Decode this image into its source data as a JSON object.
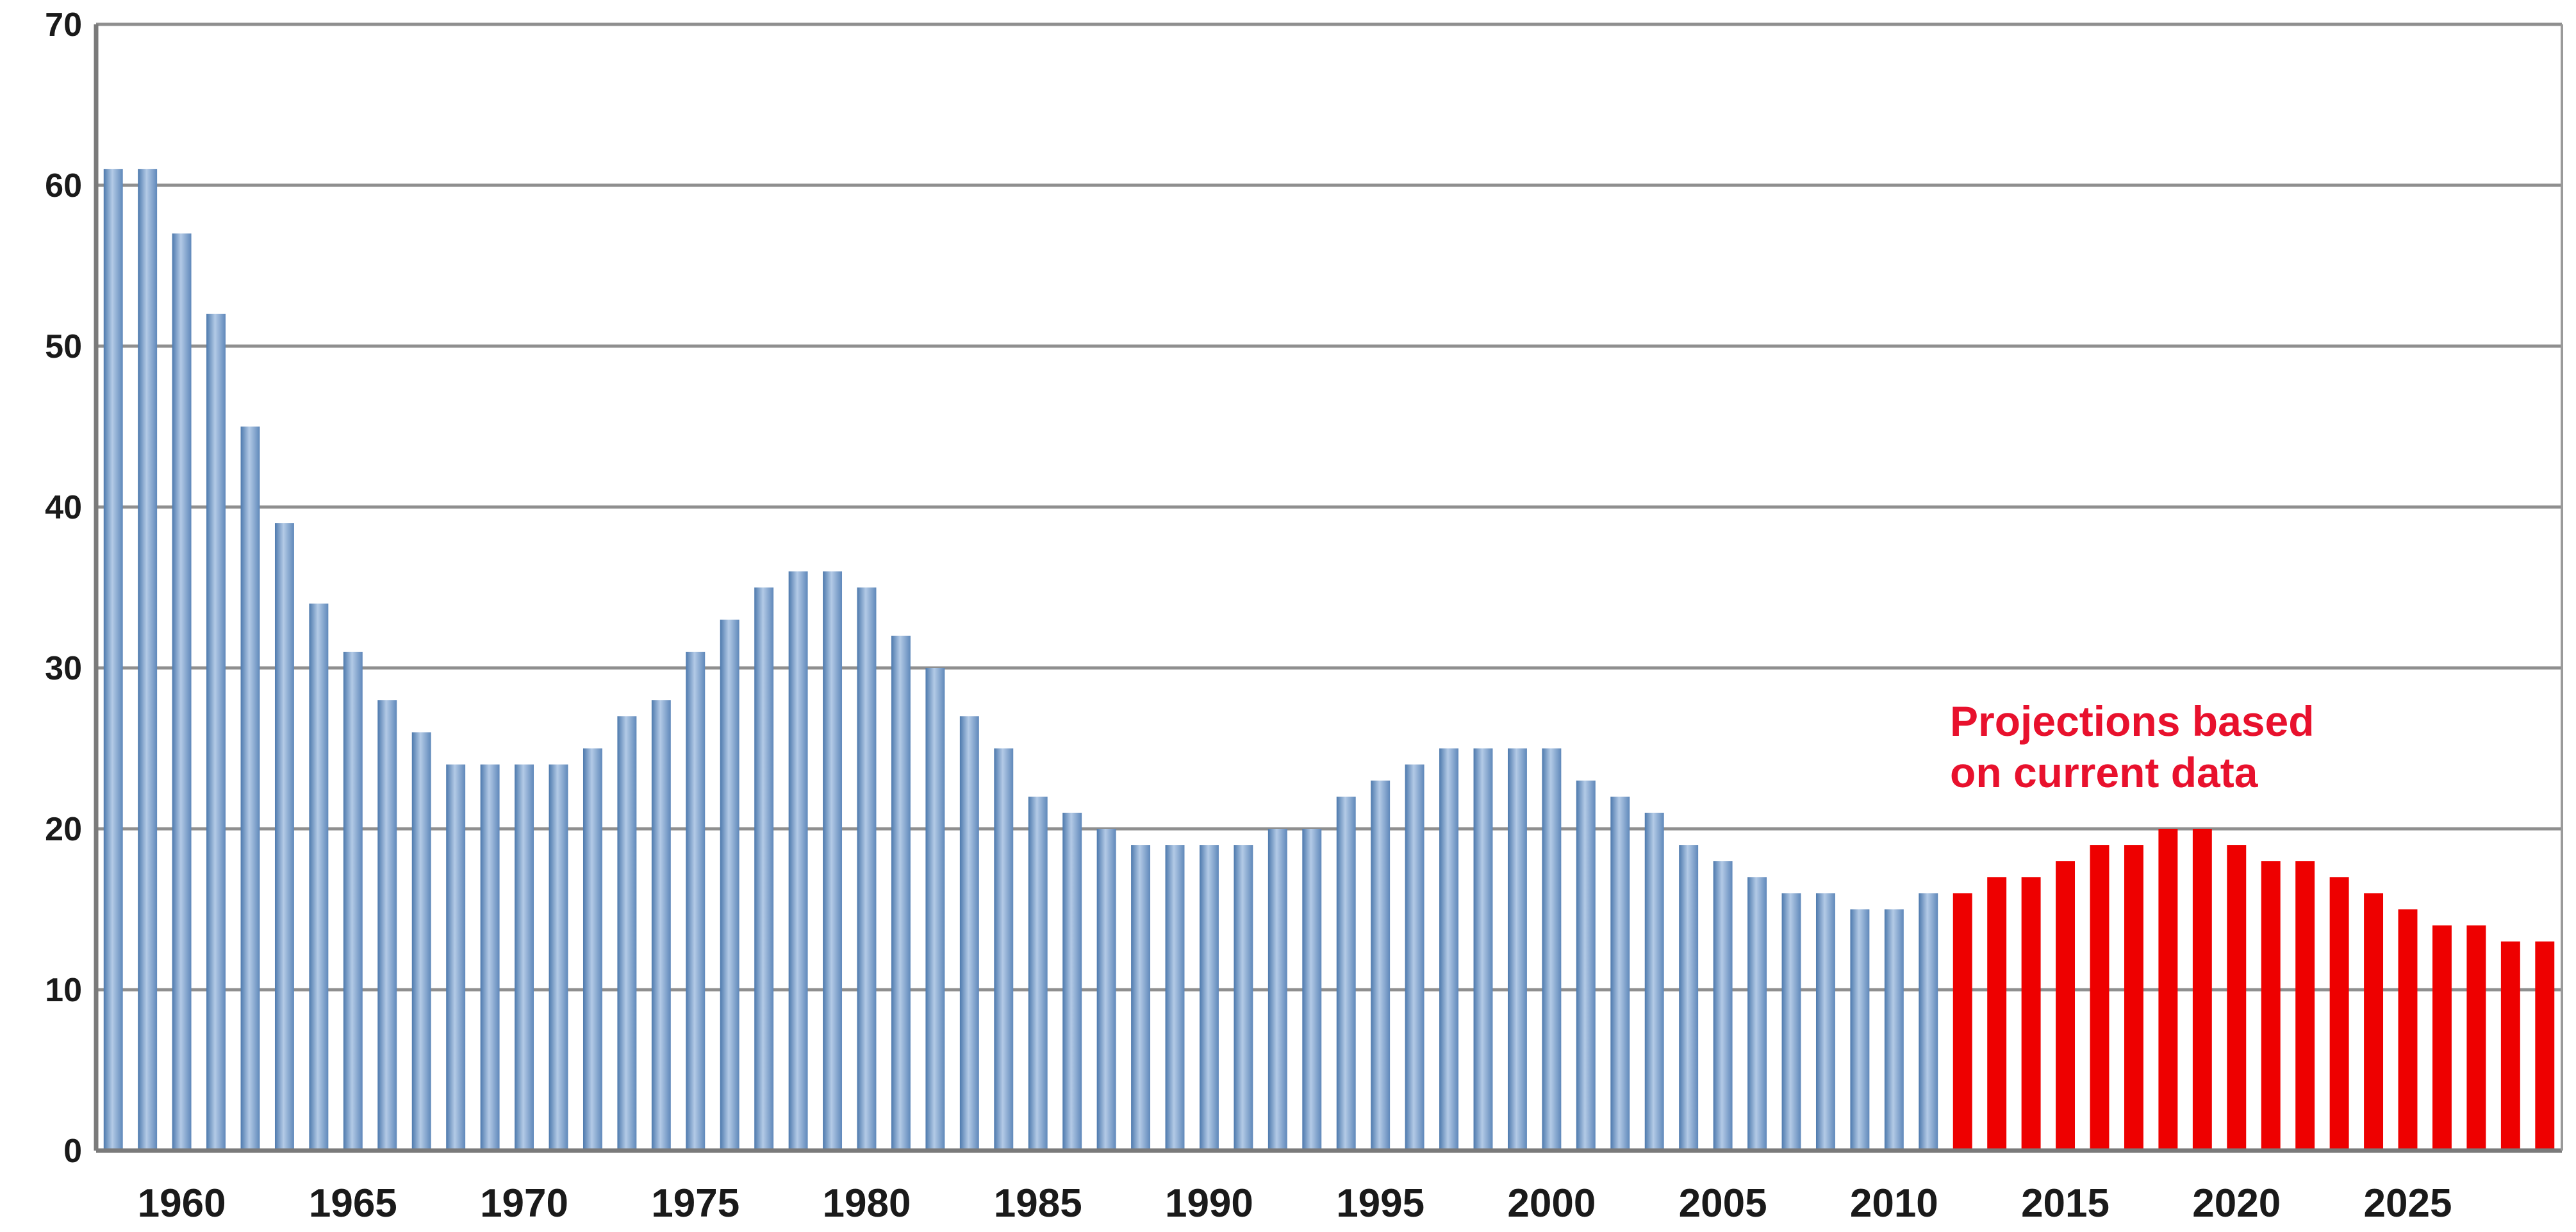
{
  "chart_data": {
    "type": "bar",
    "title": "",
    "xlabel": "",
    "ylabel": "",
    "ylim": [
      0,
      70
    ],
    "y_ticks": [
      0,
      10,
      20,
      30,
      40,
      50,
      60,
      70
    ],
    "x_tick_labels": [
      "1960",
      "1965",
      "1970",
      "1975",
      "1980",
      "1985",
      "1990",
      "1995",
      "2000",
      "2005",
      "2010",
      "2015",
      "2020",
      "2025"
    ],
    "grid": "horizontal",
    "colors": {
      "actual": "#7fa3cf",
      "actual_dark": "#4d79ad",
      "actual_light": "#b3cae6",
      "projection": "#ee0000",
      "grid": "#8f8f8f",
      "annotation": "#e8112d"
    },
    "annotation": {
      "lines": [
        "Projections based",
        "on current data"
      ]
    },
    "series": [
      {
        "kind": "actual",
        "x": [
          1958,
          1959,
          1960,
          1961,
          1962,
          1963,
          1964,
          1965,
          1966,
          1967,
          1968,
          1969,
          1970,
          1971,
          1972,
          1973,
          1974,
          1975,
          1976,
          1977,
          1978,
          1979,
          1980,
          1981,
          1982,
          1983,
          1984,
          1985,
          1986,
          1987,
          1988,
          1989,
          1990,
          1991,
          1992,
          1993,
          1994,
          1995,
          1996,
          1997,
          1998,
          1999,
          2000,
          2001,
          2002,
          2003,
          2004,
          2005,
          2006,
          2007,
          2008,
          2009,
          2010,
          2011
        ],
        "values": [
          61,
          61,
          57,
          52,
          45,
          39,
          34,
          31,
          28,
          26,
          24,
          24,
          24,
          24,
          25,
          27,
          28,
          31,
          33,
          35,
          36,
          36,
          35,
          32,
          30,
          27,
          25,
          22,
          21,
          20,
          19,
          19,
          19,
          19,
          20,
          20,
          22,
          23,
          24,
          25,
          25,
          25,
          25,
          23,
          22,
          21,
          19,
          18,
          17,
          16,
          16,
          15,
          15,
          16
        ]
      },
      {
        "kind": "projection",
        "x": [
          2012,
          2013,
          2014,
          2015,
          2016,
          2017,
          2018,
          2019,
          2020,
          2021,
          2022,
          2023,
          2024,
          2025,
          2026,
          2027,
          2028,
          2029
        ],
        "values": [
          16,
          17,
          17,
          18,
          19,
          19,
          20,
          20,
          19,
          18,
          18,
          17,
          16,
          15,
          14,
          14,
          13,
          13
        ]
      }
    ]
  }
}
